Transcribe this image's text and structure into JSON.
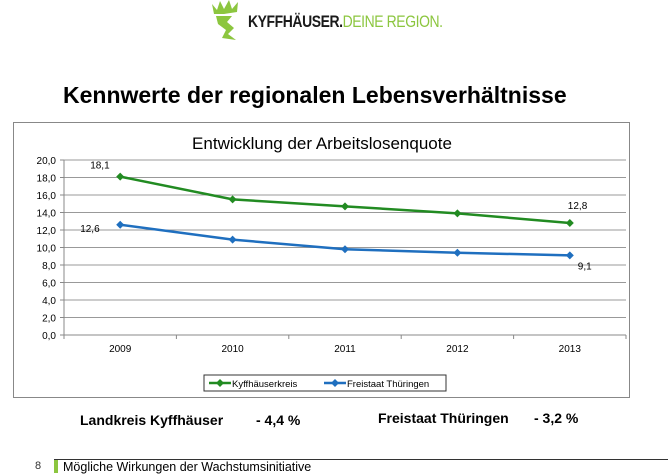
{
  "logo": {
    "text_dark": "KYFFHÄUSER.",
    "text_green": "DEINE REGION.",
    "color_green": "#8cc63f"
  },
  "slide_title": "Kennwerte der regionalen Lebensverhältnisse",
  "chart_data": {
    "type": "line",
    "title": "Entwicklung der Arbeitslosenquote",
    "categories": [
      "2009",
      "2010",
      "2011",
      "2012",
      "2013"
    ],
    "ylim": [
      0,
      20
    ],
    "yticks": [
      "0,0",
      "2,0",
      "4,0",
      "6,0",
      "8,0",
      "10,0",
      "12,0",
      "14,0",
      "16,0",
      "18,0",
      "20,0"
    ],
    "grid": true,
    "legend_position": "bottom",
    "series": [
      {
        "name": "Kyffhäuserkreis",
        "color": "#228b22",
        "values": [
          18.1,
          15.5,
          14.7,
          13.9,
          12.8
        ],
        "data_labels": [
          {
            "index": 0,
            "text": "18,1"
          },
          {
            "index": 4,
            "text": "12,8"
          }
        ]
      },
      {
        "name": "Freistaat Thüringen",
        "color": "#1f6fbf",
        "values": [
          12.6,
          10.9,
          9.8,
          9.4,
          9.1
        ],
        "data_labels": [
          {
            "index": 0,
            "text": "12,6"
          },
          {
            "index": 4,
            "text": "9,1"
          }
        ]
      }
    ]
  },
  "summary": [
    {
      "label": "Landkreis Kyffhäuser",
      "value": "- 4,4  %"
    },
    {
      "label": "Freistaat Thüringen",
      "value": "- 3,2 %"
    }
  ],
  "footer": {
    "page_number": "8",
    "text": "Mögliche Wirkungen der Wachstumsinitiative"
  }
}
